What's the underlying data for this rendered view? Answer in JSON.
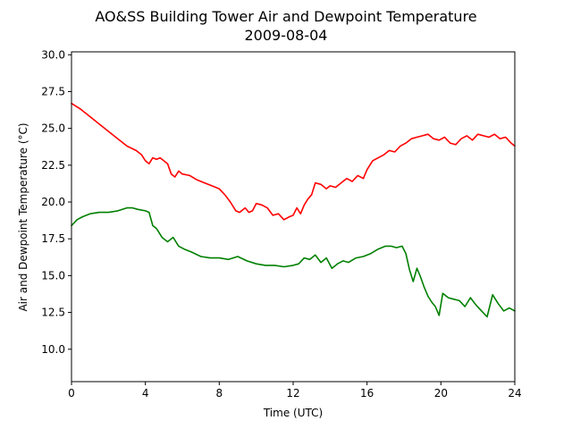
{
  "chart_data": {
    "type": "line",
    "title": "AO&SS Building Tower Air and Dewpoint Temperature",
    "subtitle": "2009-08-04",
    "xlabel": "Time (UTC)",
    "ylabel": "Air and Dewpoint Temperature (°C)",
    "xlim": [
      0,
      24
    ],
    "ylim": [
      7.8,
      30.2
    ],
    "xticks": [
      0,
      4,
      8,
      12,
      16,
      20,
      24
    ],
    "xtick_labels": [
      "0",
      "4",
      "8",
      "12",
      "16",
      "20",
      "24"
    ],
    "yticks": [
      10.0,
      12.5,
      15.0,
      17.5,
      20.0,
      22.5,
      25.0,
      27.5,
      30.0
    ],
    "ytick_labels": [
      "10.0",
      "12.5",
      "15.0",
      "17.5",
      "20.0",
      "22.5",
      "25.0",
      "27.5",
      "30.0"
    ],
    "grid": false,
    "series": [
      {
        "color": "#ff0000",
        "x": [
          0,
          0.5,
          1,
          1.5,
          2,
          2.5,
          3,
          3.5,
          3.8,
          4,
          4.2,
          4.4,
          4.6,
          4.8,
          5,
          5.2,
          5.4,
          5.6,
          5.8,
          6,
          6.4,
          6.8,
          7.2,
          7.6,
          8,
          8.3,
          8.6,
          8.9,
          9.1,
          9.4,
          9.6,
          9.8,
          10,
          10.3,
          10.6,
          10.9,
          11.2,
          11.5,
          11.8,
          12,
          12.2,
          12.4,
          12.6,
          12.8,
          13,
          13.2,
          13.5,
          13.8,
          14,
          14.3,
          14.6,
          14.9,
          15.2,
          15.5,
          15.8,
          16,
          16.3,
          16.6,
          16.9,
          17.2,
          17.5,
          17.8,
          18.1,
          18.4,
          18.7,
          19,
          19.3,
          19.6,
          19.9,
          20.2,
          20.5,
          20.8,
          21.1,
          21.4,
          21.7,
          22,
          22.3,
          22.6,
          22.9,
          23.2,
          23.5,
          23.8,
          24
        ],
        "values": [
          26.7,
          26.3,
          25.8,
          25.3,
          24.8,
          24.3,
          23.8,
          23.5,
          23.2,
          22.8,
          22.6,
          23.0,
          22.9,
          23.0,
          22.8,
          22.6,
          21.9,
          21.7,
          22.1,
          21.9,
          21.8,
          21.5,
          21.3,
          21.1,
          20.9,
          20.5,
          20.0,
          19.4,
          19.3,
          19.6,
          19.3,
          19.4,
          19.9,
          19.8,
          19.6,
          19.1,
          19.2,
          18.8,
          19.0,
          19.1,
          19.6,
          19.2,
          19.8,
          20.2,
          20.5,
          21.3,
          21.2,
          20.9,
          21.1,
          21.0,
          21.3,
          21.6,
          21.4,
          21.8,
          21.6,
          22.2,
          22.8,
          23.0,
          23.2,
          23.5,
          23.4,
          23.8,
          24.0,
          24.3,
          24.4,
          24.5,
          24.6,
          24.3,
          24.2,
          24.4,
          24.0,
          23.9,
          24.3,
          24.5,
          24.2,
          24.6,
          24.5,
          24.4,
          24.6,
          24.3,
          24.4,
          24.0,
          23.8
        ]
      },
      {
        "color": "#008000",
        "x": [
          0,
          0.3,
          0.6,
          1,
          1.5,
          2,
          2.5,
          3,
          3.3,
          3.6,
          4,
          4.2,
          4.4,
          4.6,
          4.9,
          5.2,
          5.5,
          5.8,
          6.1,
          6.5,
          7,
          7.5,
          8,
          8.5,
          9,
          9.5,
          10,
          10.5,
          11,
          11.5,
          12,
          12.3,
          12.6,
          12.9,
          13.2,
          13.5,
          13.8,
          14.1,
          14.4,
          14.7,
          15,
          15.4,
          15.8,
          16.2,
          16.6,
          17,
          17.3,
          17.6,
          17.9,
          18.1,
          18.3,
          18.5,
          18.7,
          18.9,
          19.1,
          19.3,
          19.5,
          19.7,
          19.9,
          20.1,
          20.4,
          20.7,
          21,
          21.3,
          21.6,
          21.9,
          22.2,
          22.5,
          22.8,
          23.1,
          23.4,
          23.7,
          24
        ],
        "values": [
          18.4,
          18.8,
          19.0,
          19.2,
          19.3,
          19.3,
          19.4,
          19.6,
          19.6,
          19.5,
          19.4,
          19.3,
          18.4,
          18.2,
          17.6,
          17.3,
          17.6,
          17.0,
          16.8,
          16.6,
          16.3,
          16.2,
          16.2,
          16.1,
          16.3,
          16.0,
          15.8,
          15.7,
          15.7,
          15.6,
          15.7,
          15.8,
          16.2,
          16.1,
          16.4,
          15.9,
          16.2,
          15.5,
          15.8,
          16.0,
          15.9,
          16.2,
          16.3,
          16.5,
          16.8,
          17.0,
          17.0,
          16.9,
          17.0,
          16.5,
          15.4,
          14.6,
          15.5,
          14.9,
          14.2,
          13.6,
          13.2,
          12.9,
          12.3,
          13.8,
          13.5,
          13.4,
          13.3,
          12.9,
          13.5,
          13.0,
          12.6,
          12.2,
          13.7,
          13.1,
          12.6,
          12.8,
          12.6
        ]
      }
    ]
  }
}
